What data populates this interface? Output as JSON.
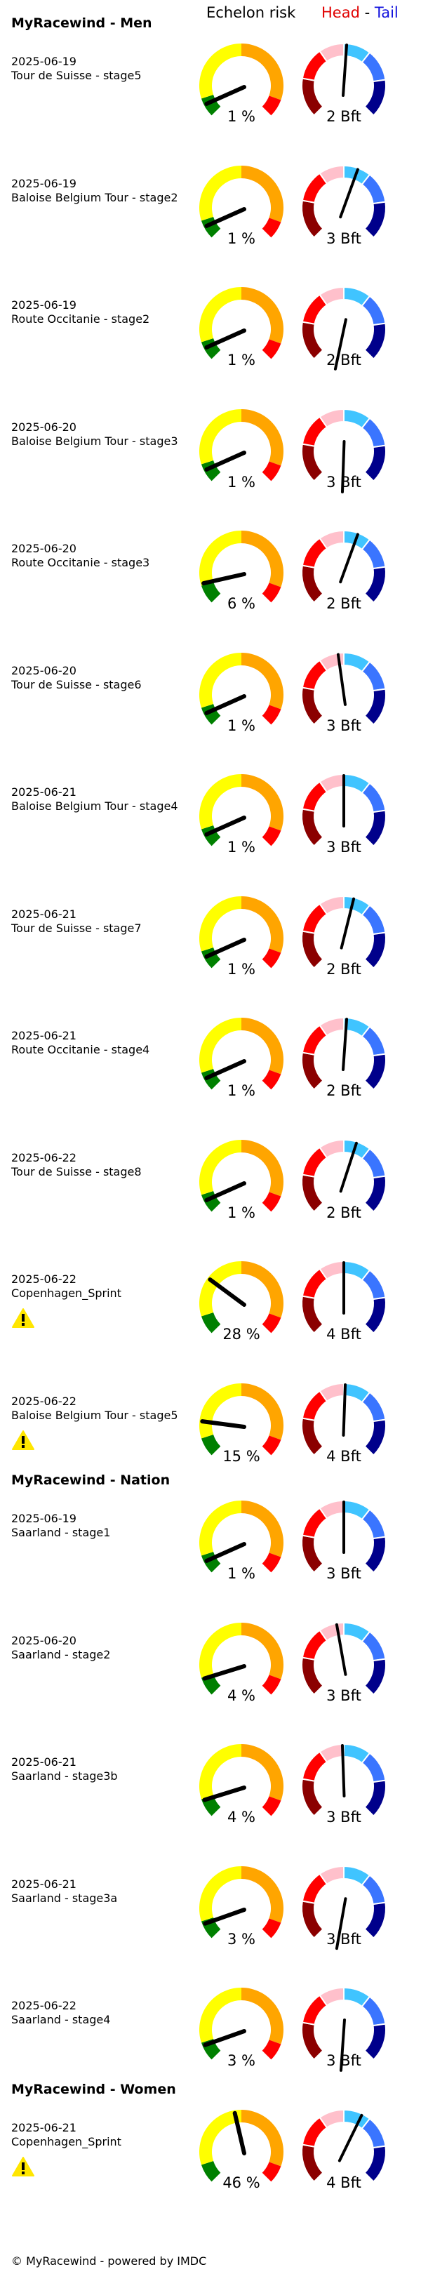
{
  "header": {
    "echelon_label": "Echelon risk",
    "head_label": "Head",
    "separator": " - ",
    "tail_label": "Tail"
  },
  "colors": {
    "echelon": {
      "green": "#008000",
      "yellow": "#ffff00",
      "orange": "#ffa500",
      "red": "#ff0000"
    },
    "wind": {
      "darkred": "#8b0000",
      "red": "#ff0000",
      "pink": "#ffc0cb",
      "lightblue": "#40c4ff",
      "blue": "#3a75ff",
      "darkblue": "#00008b"
    },
    "warning": "#ffe600"
  },
  "sections": [
    {
      "title": "MyRacewind - Men",
      "races": [
        {
          "date": "2025-06-19",
          "name": "Tour de Suisse - stage5",
          "risk_pct": 1,
          "risk_label": "1 %",
          "bft": 2,
          "wind_label": "2 Bft",
          "wind_dir": 4,
          "warning": false
        },
        {
          "date": "2025-06-19",
          "name": "Baloise Belgium Tour - stage2",
          "risk_pct": 1,
          "risk_label": "1 %",
          "bft": 3,
          "wind_label": "3 Bft",
          "wind_dir": 20,
          "warning": false
        },
        {
          "date": "2025-06-19",
          "name": "Route Occitanie - stage2",
          "risk_pct": 1,
          "risk_label": "1 %",
          "bft": 2,
          "wind_label": "2 Bft",
          "wind_dir": -168,
          "warning": false
        },
        {
          "date": "2025-06-20",
          "name": "Baloise Belgium Tour - stage3",
          "risk_pct": 1,
          "risk_label": "1 %",
          "bft": 3,
          "wind_label": "3 Bft",
          "wind_dir": -178,
          "warning": false
        },
        {
          "date": "2025-06-20",
          "name": "Route Occitanie - stage3",
          "risk_pct": 6,
          "risk_label": "6 %",
          "bft": 2,
          "wind_label": "2 Bft",
          "wind_dir": 20,
          "warning": false
        },
        {
          "date": "2025-06-20",
          "name": "Tour de Suisse - stage6",
          "risk_pct": 1,
          "risk_label": "1 %",
          "bft": 3,
          "wind_label": "3 Bft",
          "wind_dir": -8,
          "warning": false
        },
        {
          "date": "2025-06-21",
          "name": "Baloise Belgium Tour - stage4",
          "risk_pct": 1,
          "risk_label": "1 %",
          "bft": 3,
          "wind_label": "3 Bft",
          "wind_dir": 0,
          "warning": false
        },
        {
          "date": "2025-06-21",
          "name": "Tour de Suisse - stage7",
          "risk_pct": 1,
          "risk_label": "1 %",
          "bft": 2,
          "wind_label": "2 Bft",
          "wind_dir": 14,
          "warning": false
        },
        {
          "date": "2025-06-21",
          "name": "Route Occitanie - stage4",
          "risk_pct": 1,
          "risk_label": "1 %",
          "bft": 2,
          "wind_label": "2 Bft",
          "wind_dir": 4,
          "warning": false
        },
        {
          "date": "2025-06-22",
          "name": "Tour de Suisse - stage8",
          "risk_pct": 1,
          "risk_label": "1 %",
          "bft": 2,
          "wind_label": "2 Bft",
          "wind_dir": 18,
          "warning": false
        },
        {
          "date": "2025-06-22",
          "name": "Copenhagen_Sprint",
          "risk_pct": 28,
          "risk_label": "28 %",
          "bft": 4,
          "wind_label": "4 Bft",
          "wind_dir": 0,
          "warning": true
        },
        {
          "date": "2025-06-22",
          "name": "Baloise Belgium Tour - stage5",
          "risk_pct": 15,
          "risk_label": "15 %",
          "bft": 4,
          "wind_label": "4 Bft",
          "wind_dir": 2,
          "warning": true
        }
      ]
    },
    {
      "title": "MyRacewind - Nation",
      "races": [
        {
          "date": "2025-06-19",
          "name": "Saarland - stage1",
          "risk_pct": 1,
          "risk_label": "1 %",
          "bft": 3,
          "wind_label": "3 Bft",
          "wind_dir": 0,
          "warning": false
        },
        {
          "date": "2025-06-20",
          "name": "Saarland - stage2",
          "risk_pct": 4,
          "risk_label": "4 %",
          "bft": 3,
          "wind_label": "3 Bft",
          "wind_dir": -10,
          "warning": false
        },
        {
          "date": "2025-06-21",
          "name": "Saarland - stage3b",
          "risk_pct": 4,
          "risk_label": "4 %",
          "bft": 3,
          "wind_label": "3 Bft",
          "wind_dir": -2,
          "warning": false
        },
        {
          "date": "2025-06-21",
          "name": "Saarland - stage3a",
          "risk_pct": 3,
          "risk_label": "3 %",
          "bft": 3,
          "wind_label": "3 Bft",
          "wind_dir": -170,
          "warning": false
        },
        {
          "date": "2025-06-22",
          "name": "Saarland - stage4",
          "risk_pct": 3,
          "risk_label": "3 %",
          "bft": 3,
          "wind_label": "3 Bft",
          "wind_dir": -176,
          "warning": false
        }
      ]
    },
    {
      "title": "MyRacewind - Women",
      "races": [
        {
          "date": "2025-06-21",
          "name": "Copenhagen_Sprint",
          "risk_pct": 46,
          "risk_label": "46 %",
          "bft": 4,
          "wind_label": "4 Bft",
          "wind_dir": 26,
          "warning": true
        }
      ]
    }
  ],
  "footer": "© MyRacewind - powered by IMDC"
}
